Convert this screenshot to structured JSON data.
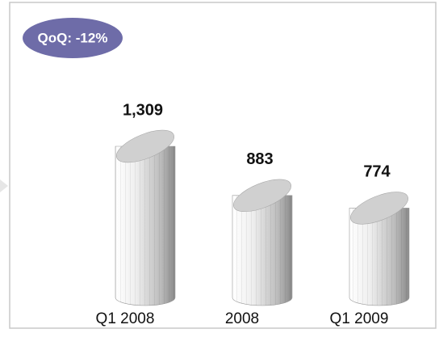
{
  "chart_data": {
    "type": "bar",
    "annotation": "QoQ: -12%",
    "categories": [
      "Q1 2008",
      "2008",
      "Q1 2009"
    ],
    "values": [
      1309,
      883,
      774
    ],
    "value_labels": [
      "1,309",
      "883",
      "774"
    ],
    "color": "#d0d0d0",
    "annotation_color": "#6e6ca8"
  }
}
